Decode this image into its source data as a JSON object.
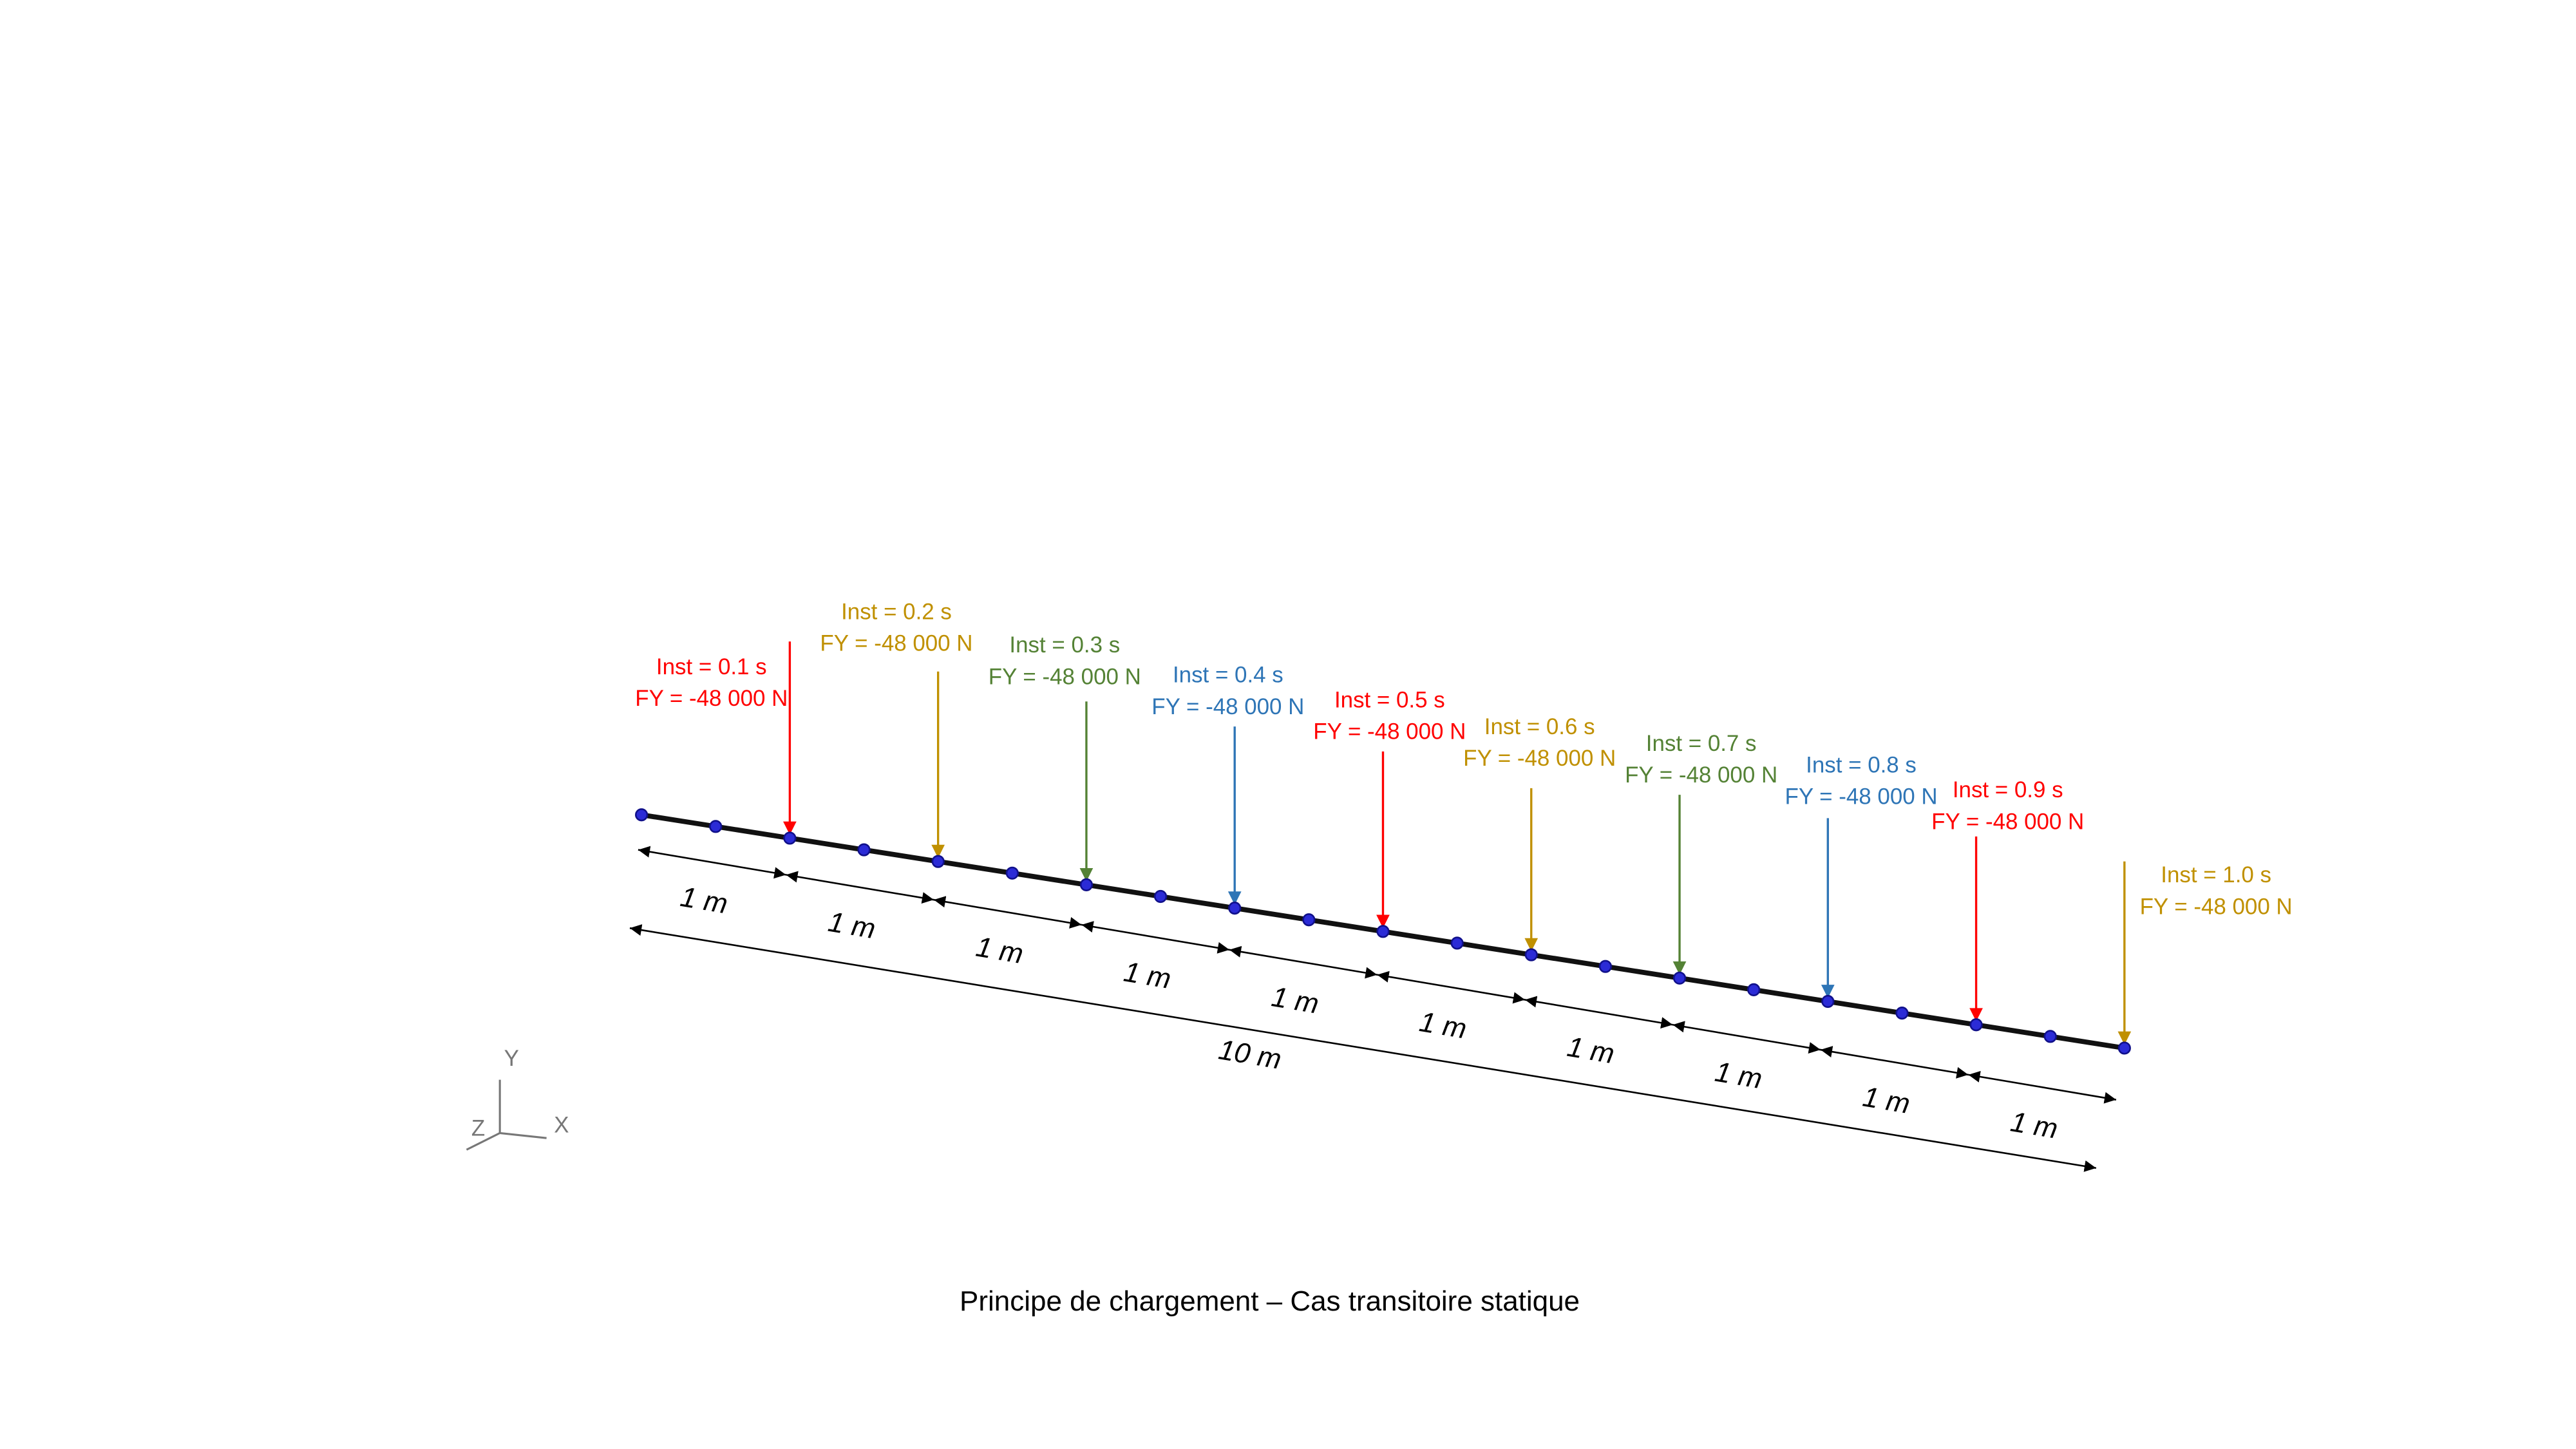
{
  "loads": [
    {
      "inst": "Inst = 0.1 s",
      "force": "FY = -48 000 N",
      "color": "#ff0000"
    },
    {
      "inst": "Inst = 0.2 s",
      "force": "FY = -48 000 N",
      "color": "#c09000"
    },
    {
      "inst": "Inst = 0.3 s",
      "force": "FY = -48 000 N",
      "color": "#548235"
    },
    {
      "inst": "Inst = 0.4 s",
      "force": "FY = -48 000 N",
      "color": "#2e75b6"
    },
    {
      "inst": "Inst = 0.5 s",
      "force": "FY = -48 000 N",
      "color": "#ff0000"
    },
    {
      "inst": "Inst = 0.6 s",
      "force": "FY = -48 000 N",
      "color": "#c09000"
    },
    {
      "inst": "Inst = 0.7 s",
      "force": "FY = -48 000 N",
      "color": "#548235"
    },
    {
      "inst": "Inst = 0.8 s",
      "force": "FY = -48 000 N",
      "color": "#2e75b6"
    },
    {
      "inst": "Inst = 0.9 s",
      "force": "FY = -48 000 N",
      "color": "#ff0000"
    },
    {
      "inst": "Inst = 1.0 s",
      "force": "FY = -48 000 N",
      "color": "#c09000"
    }
  ],
  "segments": [
    "1 m",
    "1 m",
    "1 m",
    "1 m",
    "1 m",
    "1 m",
    "1 m",
    "1 m",
    "1 m",
    "1 m"
  ],
  "total": "10 m",
  "axes": {
    "y": "Y",
    "z": "Z",
    "x": "X"
  },
  "caption": "Principe de chargement – Cas  transitoire statique"
}
